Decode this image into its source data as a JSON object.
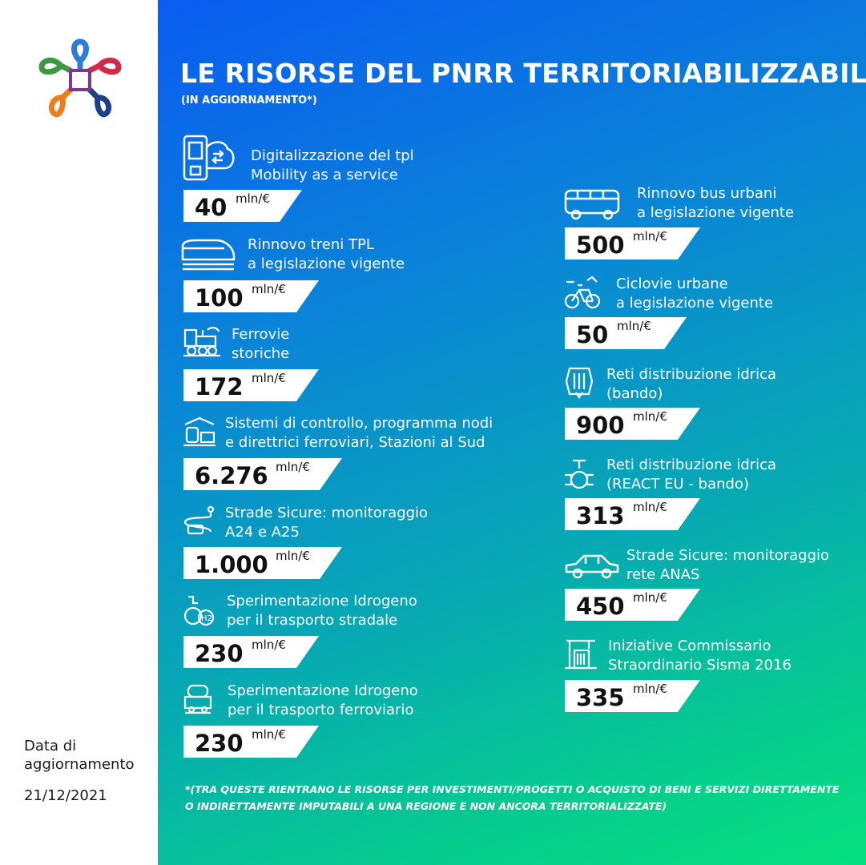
{
  "title": "LE RISORSE DEL PNRR TERRITORIABILIZZABILI",
  "subtitle": "(IN AGGIORNAMENTO*)",
  "update": {
    "label_line1": "Data di",
    "label_line2": "aggiornamento",
    "date": "21/12/2021"
  },
  "colors": {
    "gradient_start": "#0a5cf0",
    "gradient_end": "#05e07e",
    "text": "#ffffff"
  },
  "unit": "mln/€",
  "left_items": [
    {
      "icon": "smartphone-cloud-icon",
      "line1": "Digitalizzazione del tpl",
      "line2": "Mobility as a service",
      "value": "40"
    },
    {
      "icon": "high-speed-train-icon",
      "line1": "Rinnovo  treni TPL",
      "line2": "a legislazione vigente",
      "value": "100"
    },
    {
      "icon": "steam-locomotive-icon",
      "line1": "Ferrovie",
      "line2": "storiche",
      "value": "172"
    },
    {
      "icon": "railway-station-icon",
      "line1": "Sistemi di controllo, programma nodi",
      "line2": "e direttrici ferroviari, Stazioni al Sud",
      "value": "6.276"
    },
    {
      "icon": "road-monitoring-icon",
      "line1": "Strade Sicure: monitoraggio",
      "line2": "A24 e A25",
      "value": "1.000"
    },
    {
      "icon": "hydrogen-vehicle-icon",
      "line1": "Sperimentazione Idrogeno",
      "line2": "per il trasporto stradale",
      "value": "230"
    },
    {
      "icon": "hydrogen-train-icon",
      "line1": "Sperimentazione Idrogeno",
      "line2": "per il trasporto ferroviario",
      "value": "230"
    }
  ],
  "right_items": [
    {
      "icon": "bus-icon",
      "line1": "Rinnovo bus urbani",
      "line2": "a legislazione vigente",
      "value": "500"
    },
    {
      "icon": "bicycle-icon",
      "line1": "Ciclovie urbane",
      "line2": "a legislazione vigente",
      "value": "50"
    },
    {
      "icon": "water-network-icon",
      "line1": "Reti distribuzione idrica",
      "line2": "(bando)",
      "value": "900"
    },
    {
      "icon": "water-valve-icon",
      "line1": "Reti distribuzione idrica",
      "line2": "(REACT EU - bando)",
      "value": "313"
    },
    {
      "icon": "car-icon",
      "line1": "Strade Sicure: monitoraggio",
      "line2": "rete ANAS",
      "value": "450"
    },
    {
      "icon": "construction-crane-icon",
      "line1": "Iniziative Commissario",
      "line2": "Straordinario Sisma 2016",
      "value": "335"
    }
  ],
  "footnote": "*(TRA QUESTE RIENTRANO LE RISORSE PER INVESTIMENTI/PROGETTI O ACQUISTO DI BENI E SERVIZI DIRETTAMENTE O INDIRETTAMENTE IMPUTABILI A UNA REGIONE E NON ANCORA TERRITORIALIZZATE)"
}
